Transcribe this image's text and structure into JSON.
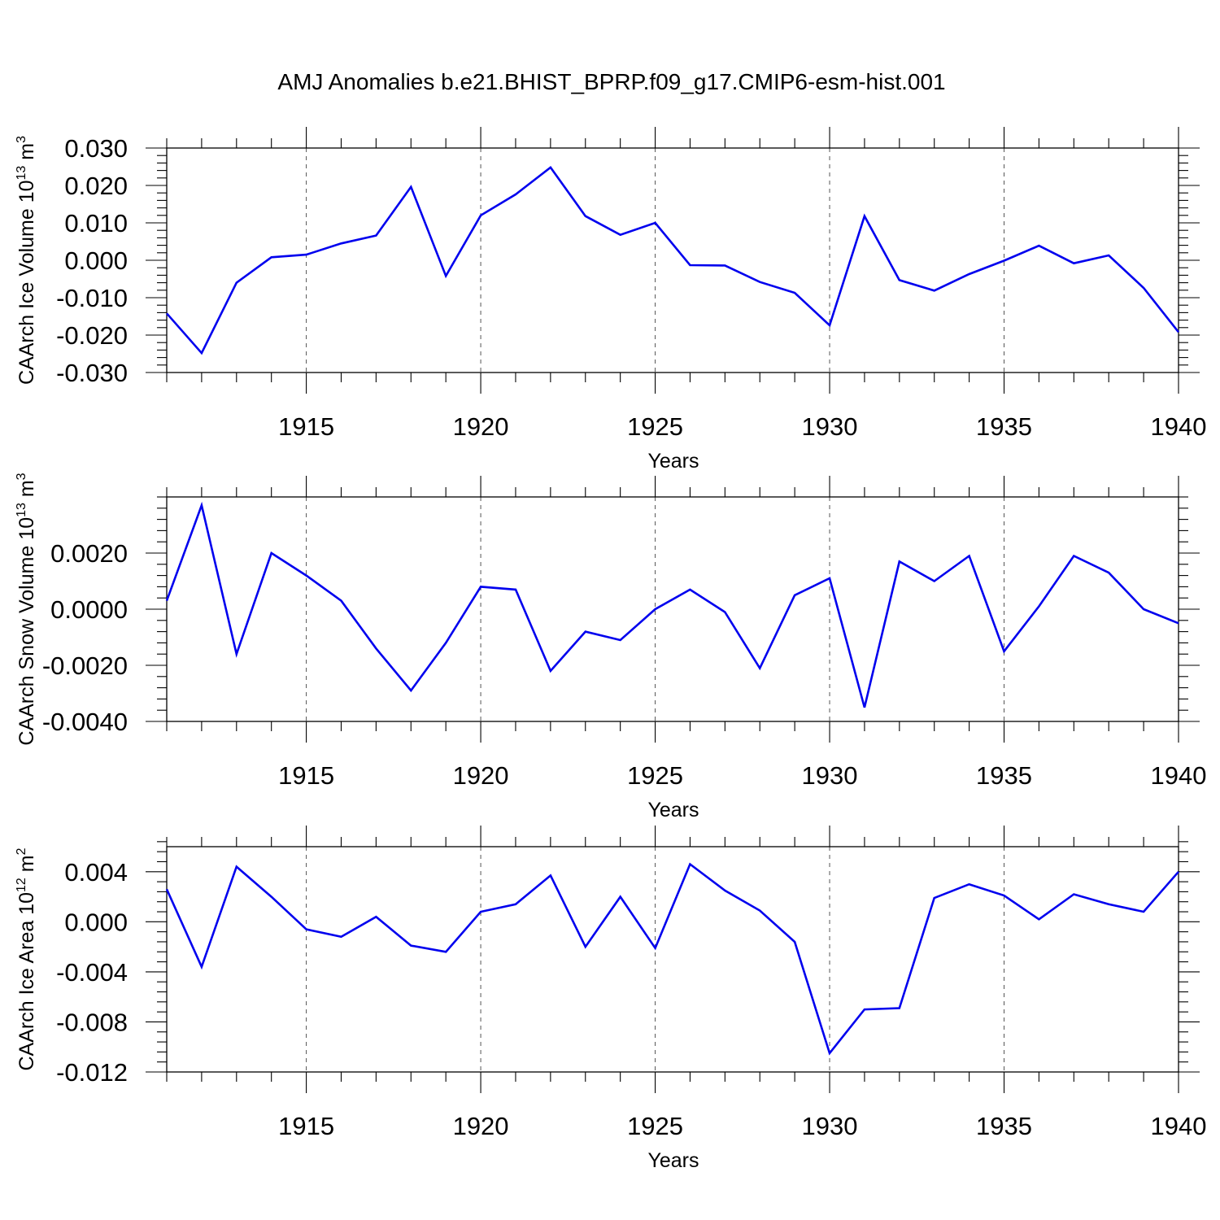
{
  "title": "AMJ Anomalies b.e21.BHIST_BPRP.f09_g17.CMIP6-esm-hist.001",
  "colors": {
    "line": "#0000ee",
    "grid": "#555555"
  },
  "chart_data": [
    {
      "type": "line",
      "title": "AMJ Anomalies b.e21.BHIST_BPRP.f09_g17.CMIP6-esm-hist.001",
      "xlabel": "Years",
      "ylabel": {
        "main": "CAArch Ice Volume 10",
        "exp": "13",
        "unit": " m",
        "unitexp": "3"
      },
      "xlim": [
        1911,
        1940
      ],
      "ylim": [
        -0.03,
        0.03
      ],
      "yticks": [
        -0.03,
        -0.02,
        -0.01,
        0,
        0.01,
        0.02,
        0.03
      ],
      "ytick_labels": [
        "-0.030",
        "-0.020",
        "-0.010",
        "0.000",
        "0.010",
        "0.020",
        "0.030"
      ],
      "xticks": [
        1915,
        1920,
        1925,
        1930,
        1935,
        1940
      ],
      "xtick_labels": [
        "1915",
        "1920",
        "1925",
        "1930",
        "1935",
        "1940"
      ],
      "x": [
        1911,
        1912,
        1913,
        1914,
        1915,
        1916,
        1917,
        1918,
        1919,
        1920,
        1921,
        1922,
        1923,
        1924,
        1925,
        1926,
        1927,
        1928,
        1929,
        1930,
        1931,
        1932,
        1933,
        1934,
        1935,
        1936,
        1937,
        1938,
        1939,
        1940
      ],
      "series": [
        {
          "name": "CAArch Ice Volume",
          "values": [
            -0.0142,
            -0.0248,
            -0.006,
            0.0008,
            0.0015,
            0.0045,
            0.0066,
            0.0196,
            -0.0042,
            0.012,
            0.0176,
            0.0248,
            0.0118,
            0.0068,
            0.01,
            -0.0013,
            -0.0014,
            -0.0058,
            -0.0087,
            -0.0174,
            0.0118,
            -0.0053,
            -0.0081,
            -0.0037,
            -0.0001,
            0.0039,
            -0.0008,
            0.0013,
            -0.0074,
            -0.0192
          ]
        }
      ]
    },
    {
      "type": "line",
      "xlabel": "Years",
      "ylabel": {
        "main": "CAArch Snow Volume 10",
        "exp": "13",
        "unit": " m",
        "unitexp": "3"
      },
      "xlim": [
        1911,
        1940
      ],
      "ylim": [
        -0.004,
        0.004
      ],
      "yticks": [
        -0.004,
        -0.002,
        0,
        0.002
      ],
      "ytick_labels": [
        "-0.0040",
        "-0.0020",
        "0.0000",
        "0.0020"
      ],
      "xticks": [
        1915,
        1920,
        1925,
        1930,
        1935,
        1940
      ],
      "xtick_labels": [
        "1915",
        "1920",
        "1925",
        "1930",
        "1935",
        "1940"
      ],
      "x": [
        1911,
        1912,
        1913,
        1914,
        1915,
        1916,
        1917,
        1918,
        1919,
        1920,
        1921,
        1922,
        1923,
        1924,
        1925,
        1926,
        1927,
        1928,
        1929,
        1930,
        1931,
        1932,
        1933,
        1934,
        1935,
        1936,
        1937,
        1938,
        1939,
        1940
      ],
      "series": [
        {
          "name": "CAArch Snow Volume",
          "values": [
            0.0003,
            0.0037,
            -0.0016,
            0.002,
            0.0012,
            0.0003,
            -0.0014,
            -0.0029,
            -0.0012,
            0.0008,
            0.0007,
            -0.0022,
            -0.0008,
            -0.0011,
            0.0,
            0.0007,
            -0.0001,
            -0.0021,
            0.0005,
            0.0011,
            -0.0035,
            0.0017,
            0.001,
            0.0019,
            -0.0015,
            0.0001,
            0.0019,
            0.0013,
            0.0,
            -0.0005
          ]
        }
      ]
    },
    {
      "type": "line",
      "xlabel": "Years",
      "ylabel": {
        "main": "CAArch Ice Area 10",
        "exp": "12",
        "unit": " m",
        "unitexp": "2"
      },
      "xlim": [
        1911,
        1940
      ],
      "ylim": [
        -0.012,
        0.006
      ],
      "yticks": [
        -0.012,
        -0.008,
        -0.004,
        0,
        0.004
      ],
      "ytick_labels": [
        "-0.012",
        "-0.008",
        "-0.004",
        "0.000",
        "0.004"
      ],
      "xticks": [
        1915,
        1920,
        1925,
        1930,
        1935,
        1940
      ],
      "xtick_labels": [
        "1915",
        "1920",
        "1925",
        "1930",
        "1935",
        "1940"
      ],
      "x": [
        1911,
        1912,
        1913,
        1914,
        1915,
        1916,
        1917,
        1918,
        1919,
        1920,
        1921,
        1922,
        1923,
        1924,
        1925,
        1926,
        1927,
        1928,
        1929,
        1930,
        1931,
        1932,
        1933,
        1934,
        1935,
        1936,
        1937,
        1938,
        1939,
        1940
      ],
      "series": [
        {
          "name": "CAArch Ice Area",
          "values": [
            0.0026,
            -0.0036,
            0.0044,
            0.002,
            -0.0006,
            -0.0012,
            0.0004,
            -0.0019,
            -0.0024,
            0.0008,
            0.0014,
            0.0037,
            -0.002,
            0.002,
            -0.0021,
            0.0046,
            0.0025,
            0.0009,
            -0.0016,
            -0.0105,
            -0.007,
            -0.0069,
            0.0019,
            0.003,
            0.0021,
            0.0002,
            0.0022,
            0.0014,
            0.0008,
            0.004
          ]
        }
      ]
    }
  ]
}
